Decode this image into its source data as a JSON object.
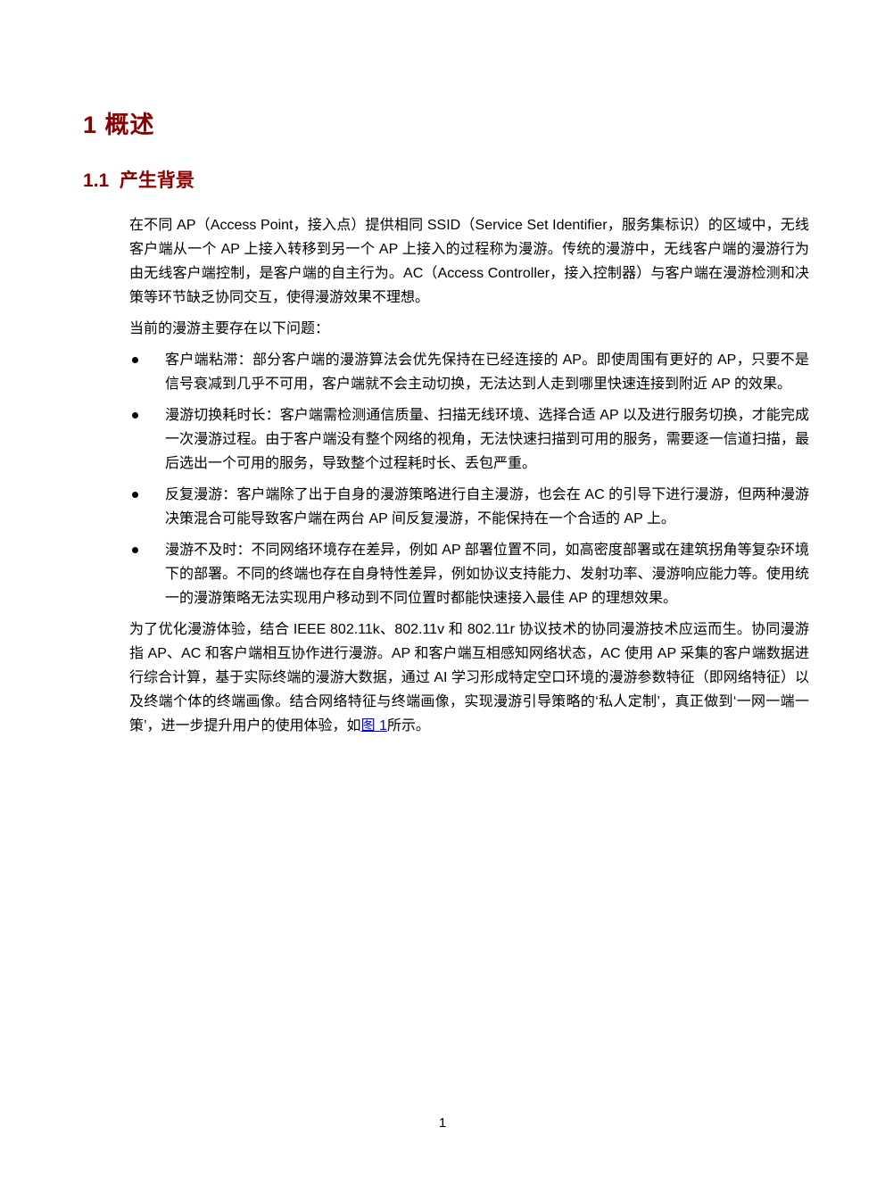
{
  "page": {
    "number": "1"
  },
  "headings": {
    "chapter": "1 概述",
    "section": "1.1  产生背景"
  },
  "content": {
    "intro": "在不同 AP（Access Point，接入点）提供相同 SSID（Service Set Identifier，服务集标识）的区域中，无线客户端从一个 AP 上接入转移到另一个 AP 上接入的过程称为漫游。传统的漫游中，无线客户端的漫游行为由无线客户端控制，是客户端的自主行为。AC（Access Controller，接入控制器）与客户端在漫游检测和决策等环节缺乏协同交互，使得漫游效果不理想。",
    "problems_lead": "当前的漫游主要存在以下问题：",
    "bullets": [
      "客户端粘滞：部分客户端的漫游算法会优先保持在已经连接的 AP。即使周围有更好的 AP，只要不是信号衰减到几乎不可用，客户端就不会主动切换，无法达到人走到哪里快速连接到附近 AP 的效果。",
      "漫游切换耗时长：客户端需检测通信质量、扫描无线环境、选择合适 AP 以及进行服务切换，才能完成一次漫游过程。由于客户端没有整个网络的视角，无法快速扫描到可用的服务，需要逐一信道扫描，最后选出一个可用的服务，导致整个过程耗时长、丢包严重。",
      "反复漫游：客户端除了出于自身的漫游策略进行自主漫游，也会在 AC 的引导下进行漫游，但两种漫游决策混合可能导致客户端在两台 AP 间反复漫游，不能保持在一个合适的 AP 上。",
      "漫游不及时：不同网络环境存在差异，例如 AP 部署位置不同，如高密度部署或在建筑拐角等复杂环境下的部署。不同的终端也存在自身特性差异，例如协议支持能力、发射功率、漫游响应能力等。使用统一的漫游策略无法实现用户移动到不同位置时都能快速接入最佳 AP 的理想效果。"
    ],
    "closing_before_link": "为了优化漫游体验，结合 IEEE 802.11k、802.11v 和 802.11r 协议技术的协同漫游技术应运而生。协同漫游指 AP、AC 和客户端相互协作进行漫游。AP 和客户端互相感知网络状态，AC 使用 AP 采集的客户端数据进行综合计算，基于实际终端的漫游大数据，通过 AI 学习形成特定空口环境的漫游参数特征（即网络特征）以及终端个体的终端画像。结合网络特征与终端画像，实现漫游引导策略的‘私人定制’，真正做到‘一网一端一策’，进一步提升用户的使用体验，如",
    "figure_link_label": "图 1",
    "closing_after_link": "所示。"
  },
  "colors": {
    "heading": "#8c0000",
    "link": "#0000ee",
    "body_text": "#000000",
    "page_bg": "#ffffff"
  }
}
